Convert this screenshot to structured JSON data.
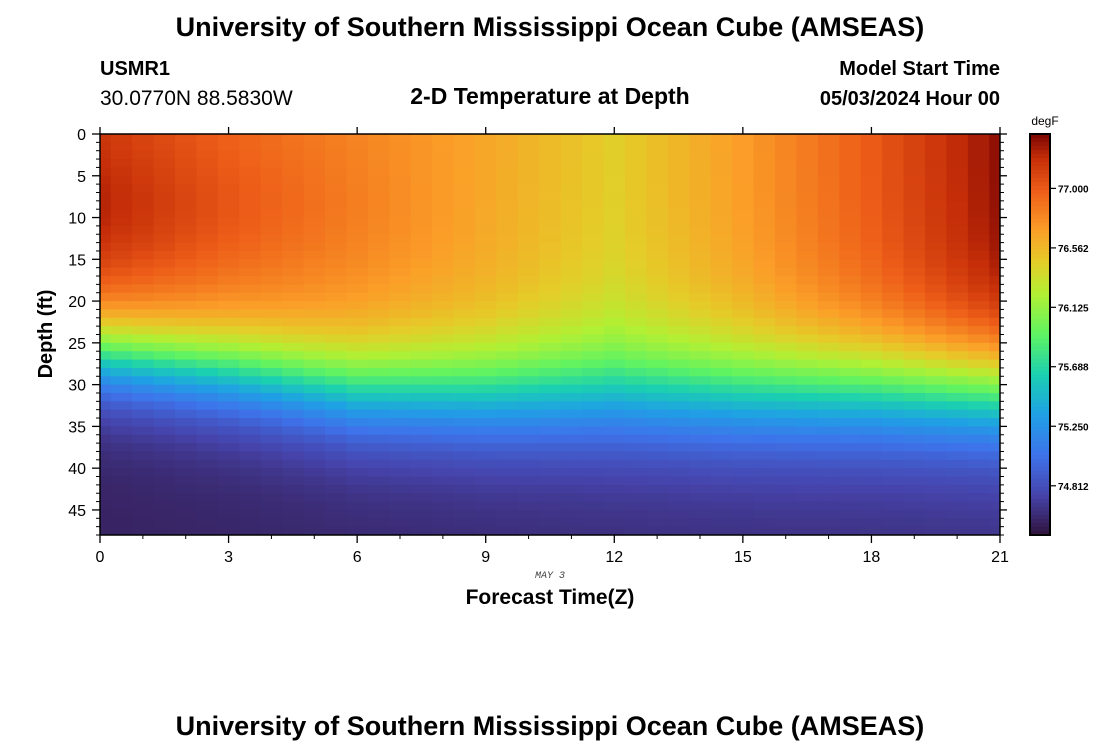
{
  "title": "University of Southern Mississippi Ocean Cube (AMSEAS)",
  "footer_title": "University of Southern Mississippi Ocean Cube (AMSEAS)",
  "station": {
    "id": "USMR1",
    "coords": "30.0770N  88.5830W"
  },
  "model": {
    "label": "Model Start Time",
    "start": "05/03/2024 Hour 00"
  },
  "chart_data": {
    "type": "heatmap",
    "title": "2-D Temperature at Depth",
    "xlabel": "Forecast Time(Z)",
    "ylabel": "Depth (ft)",
    "date_label": "MAY 3",
    "xlim": [
      0,
      21
    ],
    "ylim": [
      0,
      48
    ],
    "x_ticks": [
      0,
      3,
      6,
      9,
      12,
      15,
      18,
      21
    ],
    "y_ticks": [
      0,
      5,
      10,
      15,
      20,
      25,
      30,
      35,
      40,
      45
    ],
    "colorbar": {
      "unit": "degF",
      "min": 74.45,
      "max": 77.4,
      "ticks": [
        "77.000",
        "76.562",
        "76.125",
        "75.688",
        "75.250",
        "74.812"
      ]
    },
    "field_model": {
      "description": "Temperature (degF) vs forecast hour and depth (ft), estimated from colors",
      "surface_temp_by_hour": [
        [
          0,
          77.15
        ],
        [
          3,
          76.95
        ],
        [
          6,
          76.8
        ],
        [
          9,
          76.65
        ],
        [
          12,
          76.45
        ],
        [
          15,
          76.7
        ],
        [
          18,
          77.0
        ],
        [
          21,
          77.35
        ]
      ],
      "thermocline_center_ft_by_hour": [
        [
          0,
          26
        ],
        [
          3,
          28
        ],
        [
          6,
          30.5
        ],
        [
          9,
          31
        ],
        [
          12,
          31
        ],
        [
          15,
          31
        ],
        [
          18,
          30.5
        ],
        [
          21,
          30.5
        ]
      ],
      "thermocline_halfwidth_ft_by_hour": [
        [
          0,
          8
        ],
        [
          6,
          9
        ],
        [
          12,
          10
        ],
        [
          21,
          10
        ]
      ],
      "bottom_temp_by_hour": [
        [
          0,
          74.55
        ],
        [
          12,
          74.6
        ],
        [
          21,
          74.62
        ]
      ]
    }
  }
}
